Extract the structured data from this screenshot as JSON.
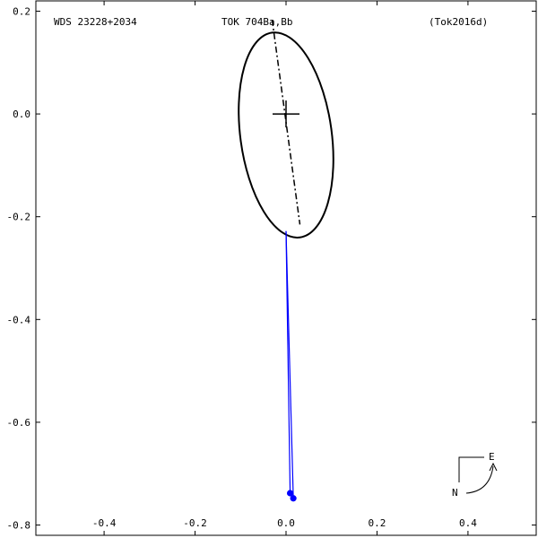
{
  "header": {
    "left": "WDS 23228+2034",
    "center": "TOK 704Ba,Bb",
    "right": "(Tok2016d)"
  },
  "compass": {
    "east_label": "E",
    "north_label": "N"
  },
  "colors": {
    "axis": "#000000",
    "orbit": "#000000",
    "residual": "#0000ff",
    "point": "#0000ff"
  },
  "chart_data": {
    "type": "scatter",
    "xlim": [
      -0.55,
      0.55
    ],
    "ylim": [
      -0.82,
      0.22
    ],
    "x_ticks": [
      -0.4,
      -0.2,
      0.0,
      0.2,
      0.4
    ],
    "x_tick_labels": [
      "-0.4",
      "-0.2",
      "0.0",
      "0.2",
      "0.4"
    ],
    "y_ticks": [
      0.2,
      0.0,
      -0.2,
      -0.4,
      -0.6,
      -0.8
    ],
    "y_tick_labels": [
      "0.2",
      "0.0",
      "-0.2",
      "-0.4",
      "-0.6",
      "-0.8"
    ],
    "grid": false,
    "orbit": {
      "center": [
        0.0,
        -0.041
      ],
      "semi_major": 0.2115,
      "semi_minor": 0.0935,
      "major_axis_end_top": [
        -0.0305,
        0.1832
      ],
      "major_axis_end_bottom": [
        0.0305,
        -0.2152
      ]
    },
    "primary": [
      0.0,
      0.0
    ],
    "residual_lines": [
      {
        "from": [
          0.0,
          -0.228
        ],
        "to": [
          0.009,
          -0.738
        ]
      },
      {
        "from": [
          0.0,
          -0.228
        ],
        "to": [
          0.016,
          -0.748
        ]
      }
    ],
    "observations": [
      {
        "x": 0.009,
        "y": -0.738
      },
      {
        "x": 0.016,
        "y": -0.748
      }
    ]
  }
}
